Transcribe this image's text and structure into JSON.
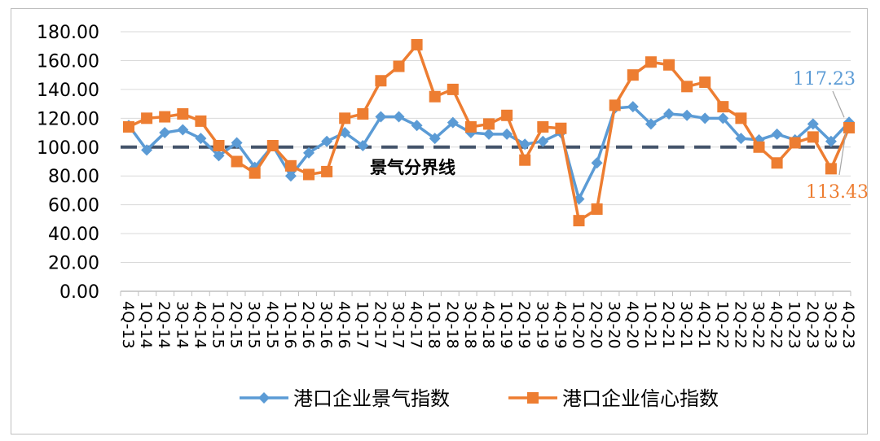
{
  "chart_data": {
    "type": "line",
    "categories": [
      "4Q-13",
      "1Q-14",
      "2Q-14",
      "3Q-14",
      "4Q-14",
      "1Q-15",
      "2Q-15",
      "3Q-15",
      "4Q-15",
      "1Q-16",
      "2Q-16",
      "3Q-16",
      "4Q-16",
      "1Q-17",
      "2Q-17",
      "3Q-17",
      "4Q-17",
      "1Q-18",
      "2Q-18",
      "3Q-18",
      "4Q-18",
      "1Q-19",
      "2Q-19",
      "3Q-19",
      "4Q-19",
      "1Q-20",
      "2Q-20",
      "3Q-20",
      "4Q-20",
      "1Q-21",
      "2Q-21",
      "3Q-21",
      "4Q-21",
      "1Q-22",
      "2Q-22",
      "3Q-22",
      "4Q-22",
      "1Q-23",
      "2Q-23",
      "3Q-23",
      "4Q-23"
    ],
    "series": [
      {
        "name": "港口企业景气指数",
        "color": "#5b9bd5",
        "marker": "diamond",
        "values": [
          115,
          98,
          110,
          112,
          106,
          94,
          103,
          86,
          101,
          80,
          96,
          104,
          110,
          101,
          121,
          121,
          115,
          106,
          117,
          110,
          109,
          109,
          102,
          104,
          110,
          64,
          89,
          127,
          128,
          116,
          123,
          122,
          120,
          120,
          106,
          105,
          109,
          105,
          116,
          104,
          117.23
        ]
      },
      {
        "name": "港口企业信心指数",
        "color": "#ed7d31",
        "marker": "square",
        "values": [
          114,
          120,
          121,
          123,
          118,
          101,
          90,
          82,
          101,
          87,
          81,
          83,
          120,
          123,
          146,
          156,
          171,
          135,
          140,
          114,
          116,
          122,
          91,
          114,
          113,
          49,
          57,
          129,
          150,
          159,
          157,
          142,
          145,
          128,
          120,
          100,
          89,
          103,
          107,
          85,
          113.43
        ]
      }
    ],
    "ylim": [
      0,
      180
    ],
    "yticks": [
      "0.00",
      "20.00",
      "40.00",
      "60.00",
      "80.00",
      "100.00",
      "120.00",
      "140.00",
      "160.00",
      "180.00"
    ],
    "reference_line": {
      "value": 100,
      "label": "景气分界线",
      "color": "#44546a"
    },
    "annotations": [
      {
        "text": "117.23",
        "series": 0,
        "color": "#5b9bd5"
      },
      {
        "text": "113.43",
        "series": 1,
        "color": "#ed7d31"
      }
    ],
    "grid": true,
    "legend": "bottom"
  }
}
